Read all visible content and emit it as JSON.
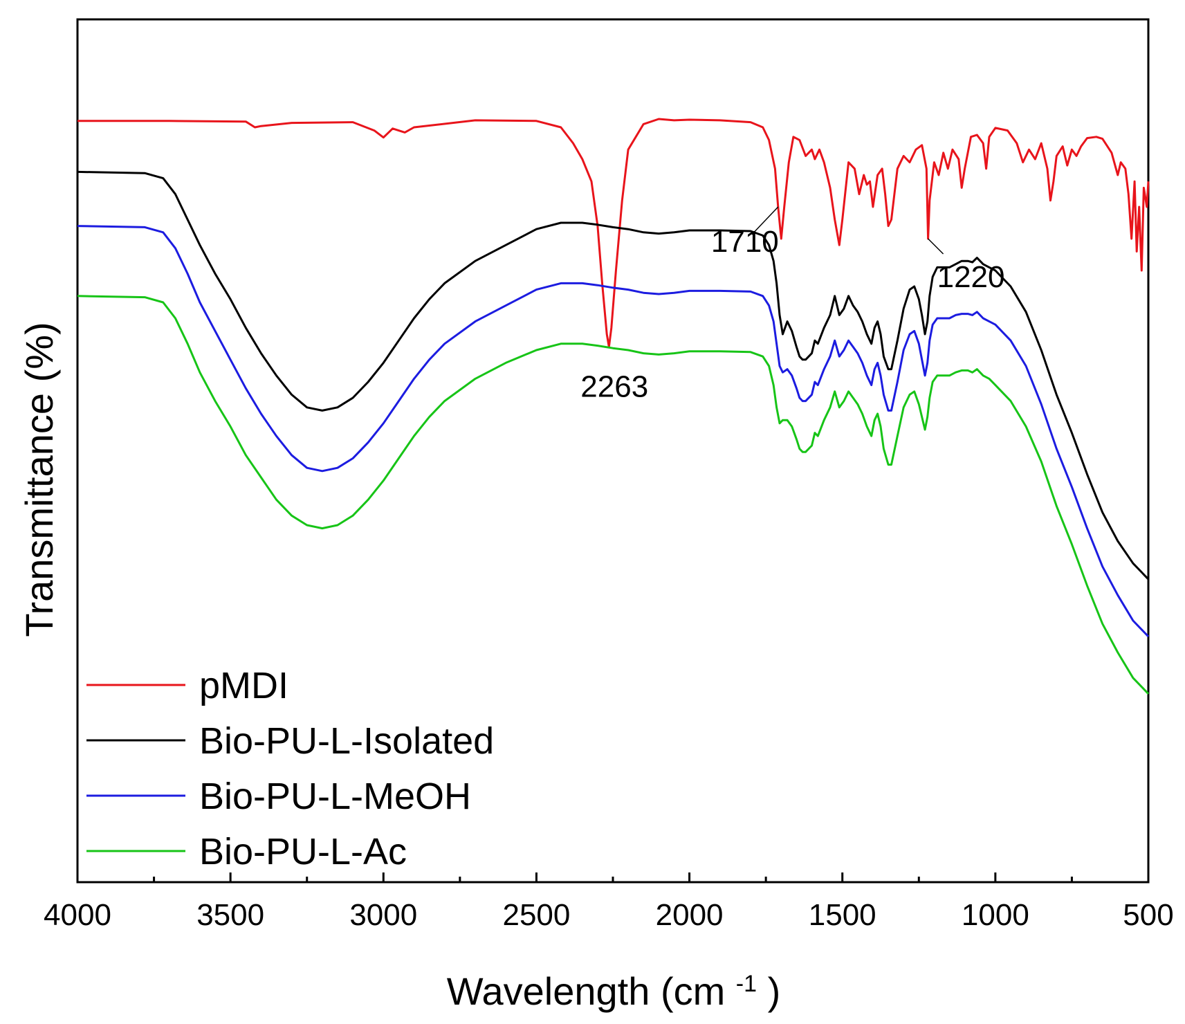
{
  "chart_data": {
    "type": "line",
    "title": "",
    "xlabel": "Wavelength (cm",
    "xlabel_sup": "-1",
    "xlabel_close": ")",
    "ylabel": "Transmittance (%)",
    "xlim": [
      4000,
      500
    ],
    "ylim": [
      0,
      100
    ],
    "x_ticks": [
      4000,
      3500,
      3000,
      2500,
      2000,
      1500,
      1000,
      500
    ],
    "x_tick_labels": [
      "4000",
      "3500",
      "3000",
      "2500",
      "2000",
      "1500",
      "1000",
      "500"
    ],
    "legend_position": "bottom-left",
    "series": [
      {
        "name": "pMDI",
        "color": "#e8141b",
        "x": [
          4000,
          3700,
          3450,
          3420,
          3400,
          3300,
          3100,
          3030,
          3000,
          2970,
          2930,
          2900,
          2700,
          2500,
          2420,
          2380,
          2350,
          2320,
          2300,
          2285,
          2270,
          2263,
          2255,
          2240,
          2220,
          2200,
          2150,
          2100,
          2050,
          2000,
          1900,
          1800,
          1760,
          1740,
          1720,
          1710,
          1700,
          1690,
          1675,
          1660,
          1640,
          1620,
          1600,
          1590,
          1575,
          1560,
          1540,
          1525,
          1510,
          1500,
          1480,
          1460,
          1445,
          1430,
          1420,
          1410,
          1400,
          1385,
          1370,
          1360,
          1350,
          1340,
          1320,
          1300,
          1280,
          1260,
          1240,
          1225,
          1220,
          1215,
          1200,
          1185,
          1170,
          1155,
          1140,
          1120,
          1110,
          1100,
          1080,
          1060,
          1040,
          1030,
          1020,
          1000,
          960,
          930,
          910,
          890,
          870,
          850,
          830,
          820,
          810,
          800,
          780,
          765,
          750,
          735,
          720,
          700,
          670,
          650,
          620,
          600,
          590,
          575,
          565,
          555,
          545,
          538,
          530,
          522,
          515,
          505,
          500
        ],
        "y": [
          93.5,
          93.5,
          93.4,
          92.5,
          92.7,
          93.2,
          93.3,
          92,
          90.9,
          92.3,
          91.7,
          92.5,
          93.6,
          93.5,
          92.5,
          90,
          87.5,
          84,
          77,
          68,
          60,
          58,
          61,
          70,
          81,
          89,
          93,
          93.8,
          93.6,
          93.7,
          93.6,
          93.3,
          92.5,
          90.5,
          86,
          80,
          75,
          80,
          87,
          91,
          90.5,
          88,
          89,
          87.5,
          89,
          87,
          83,
          78,
          74,
          78,
          87,
          86,
          82,
          85,
          83.5,
          84,
          80,
          85,
          86,
          82,
          77,
          78,
          86,
          88,
          87,
          89,
          89.7,
          86,
          75,
          81,
          87,
          85,
          88.5,
          86,
          89,
          87.5,
          83,
          86,
          91,
          91.3,
          90,
          86,
          91,
          92.4,
          92,
          90,
          87,
          89,
          87.5,
          90,
          86,
          81,
          84,
          88,
          89.5,
          86.5,
          89,
          88,
          89.5,
          90.8,
          91,
          90.7,
          88.5,
          85,
          87,
          86,
          82,
          75,
          84,
          73,
          80,
          70,
          83,
          80,
          84
        ],
        "y_note": "relative vertical offsets (stacked spectra, arbitrary units)"
      },
      {
        "name": "Bio-PU-L-Isolated",
        "color": "#000000",
        "x": [
          4000,
          3780,
          3720,
          3680,
          3640,
          3600,
          3550,
          3500,
          3450,
          3400,
          3350,
          3300,
          3250,
          3200,
          3150,
          3100,
          3050,
          3000,
          2950,
          2900,
          2850,
          2800,
          2700,
          2600,
          2500,
          2420,
          2350,
          2300,
          2250,
          2200,
          2150,
          2100,
          2050,
          2000,
          1900,
          1800,
          1760,
          1740,
          1725,
          1715,
          1705,
          1695,
          1680,
          1665,
          1650,
          1640,
          1630,
          1620,
          1600,
          1590,
          1580,
          1560,
          1540,
          1525,
          1510,
          1495,
          1480,
          1465,
          1450,
          1435,
          1420,
          1405,
          1395,
          1385,
          1375,
          1365,
          1350,
          1340,
          1320,
          1300,
          1280,
          1265,
          1250,
          1240,
          1230,
          1222,
          1215,
          1205,
          1190,
          1170,
          1150,
          1130,
          1110,
          1090,
          1075,
          1060,
          1040,
          1020,
          1000,
          950,
          900,
          850,
          800,
          750,
          700,
          650,
          600,
          550,
          520,
          500
        ],
        "y": [
          85.5,
          85.3,
          84.5,
          82,
          78,
          74,
          69.5,
          65.5,
          61,
          57,
          53.5,
          50.5,
          48.5,
          48,
          48.5,
          50,
          52.5,
          55.5,
          59,
          62.5,
          65.5,
          68,
          71.5,
          74,
          76.5,
          77.5,
          77.5,
          77.2,
          76.8,
          76.5,
          76,
          75.8,
          76,
          76.3,
          76.3,
          76.2,
          75.5,
          74,
          71.5,
          68,
          63,
          60,
          62,
          60.5,
          58,
          56.5,
          56,
          56,
          57,
          59,
          58.5,
          61,
          63,
          66,
          63,
          64,
          66,
          64.5,
          63.5,
          62,
          60,
          58.5,
          61,
          62,
          60,
          56.5,
          54.5,
          54.5,
          59,
          64,
          67,
          67.5,
          65.5,
          63,
          60,
          62,
          66,
          69,
          70.5,
          70.5,
          70.5,
          71,
          71.5,
          71.5,
          71.3,
          72,
          71,
          70.5,
          70,
          67.5,
          63.5,
          57.5,
          50.5,
          44.5,
          38,
          32,
          27.5,
          24,
          22.5,
          21.5
        ],
        "y_note": "relative vertical offsets (stacked spectra, arbitrary units)"
      },
      {
        "name": "Bio-PU-L-MeOH",
        "color": "#1c1ce0",
        "x": [
          4000,
          3780,
          3720,
          3680,
          3640,
          3600,
          3550,
          3500,
          3450,
          3400,
          3350,
          3300,
          3250,
          3200,
          3150,
          3100,
          3050,
          3000,
          2950,
          2900,
          2850,
          2800,
          2700,
          2600,
          2500,
          2420,
          2350,
          2300,
          2250,
          2200,
          2150,
          2100,
          2050,
          2000,
          1900,
          1800,
          1760,
          1740,
          1725,
          1715,
          1705,
          1695,
          1680,
          1665,
          1650,
          1640,
          1630,
          1620,
          1600,
          1590,
          1580,
          1560,
          1540,
          1525,
          1510,
          1495,
          1480,
          1465,
          1450,
          1435,
          1420,
          1405,
          1395,
          1385,
          1375,
          1365,
          1350,
          1340,
          1320,
          1300,
          1280,
          1265,
          1250,
          1240,
          1230,
          1222,
          1215,
          1205,
          1190,
          1170,
          1150,
          1130,
          1110,
          1090,
          1075,
          1060,
          1040,
          1020,
          1000,
          950,
          900,
          850,
          800,
          750,
          700,
          650,
          600,
          550,
          520,
          500
        ],
        "y": [
          77,
          76.8,
          76,
          73.5,
          69.5,
          65,
          60.5,
          56,
          51.5,
          47.5,
          44,
          41,
          39,
          38.5,
          39,
          40.5,
          43,
          46,
          49.5,
          53,
          56,
          58.5,
          62,
          64.5,
          67,
          68,
          68,
          67.7,
          67.3,
          67,
          66.5,
          66.3,
          66.5,
          66.8,
          66.8,
          66.7,
          66,
          64.5,
          62,
          58.5,
          55,
          54,
          54.5,
          53.5,
          51.5,
          50,
          49.5,
          49.5,
          50.5,
          52.5,
          52,
          54.5,
          56.5,
          59,
          56.5,
          57.5,
          59,
          58,
          57,
          55.5,
          53.5,
          52,
          54.5,
          55.5,
          53.5,
          50.5,
          48,
          48,
          52.5,
          57.5,
          60,
          60.5,
          58.5,
          56,
          53.5,
          55.5,
          59,
          61.5,
          62.5,
          62.5,
          62.5,
          63,
          63.2,
          63.2,
          63,
          63.5,
          62.5,
          62,
          61.5,
          59,
          55,
          49,
          42,
          36,
          29.5,
          23.5,
          19,
          15,
          13.5,
          12.5
        ],
        "y_note": "relative vertical offsets (stacked spectra, arbitrary units)"
      },
      {
        "name": "Bio-PU-L-Ac",
        "color": "#17c417",
        "x": [
          4000,
          3780,
          3720,
          3680,
          3640,
          3600,
          3550,
          3500,
          3450,
          3400,
          3350,
          3300,
          3250,
          3200,
          3150,
          3100,
          3050,
          3000,
          2950,
          2900,
          2850,
          2800,
          2700,
          2600,
          2500,
          2420,
          2350,
          2300,
          2250,
          2200,
          2150,
          2100,
          2050,
          2000,
          1900,
          1800,
          1760,
          1740,
          1725,
          1715,
          1705,
          1695,
          1680,
          1665,
          1650,
          1640,
          1630,
          1620,
          1600,
          1590,
          1580,
          1560,
          1540,
          1525,
          1510,
          1495,
          1480,
          1465,
          1450,
          1435,
          1420,
          1405,
          1395,
          1385,
          1375,
          1365,
          1350,
          1340,
          1320,
          1300,
          1280,
          1265,
          1250,
          1240,
          1230,
          1222,
          1215,
          1205,
          1190,
          1170,
          1150,
          1130,
          1110,
          1090,
          1075,
          1060,
          1040,
          1020,
          1000,
          950,
          900,
          850,
          800,
          750,
          700,
          650,
          600,
          550,
          520,
          500
        ],
        "y": [
          66,
          65.8,
          65,
          62.5,
          58.5,
          54,
          49.5,
          45.5,
          41,
          37.5,
          34,
          31.5,
          30,
          29.5,
          30,
          31.5,
          34,
          37,
          40.5,
          44,
          47,
          49.5,
          53,
          55.5,
          57.5,
          58.5,
          58.5,
          58.2,
          57.8,
          57.5,
          57,
          56.8,
          57,
          57.3,
          57.3,
          57.2,
          56.5,
          55,
          52,
          48.5,
          46,
          46.5,
          46.5,
          45.5,
          43.5,
          42,
          41.5,
          41.5,
          42.5,
          44.5,
          44,
          46.5,
          48.5,
          51,
          48.5,
          49.5,
          51,
          50,
          49,
          47.5,
          45.5,
          44,
          46.5,
          47.5,
          45.5,
          42,
          39.5,
          39.5,
          44,
          48.5,
          50.5,
          51,
          49,
          47,
          45,
          47,
          50,
          52.5,
          53.5,
          53.5,
          53.5,
          54,
          54.3,
          54.3,
          54,
          54.5,
          53.5,
          53,
          52,
          49.5,
          45.5,
          40,
          33,
          27,
          20.5,
          14.5,
          10,
          6,
          4.5,
          3.5
        ],
        "y_note": "relative vertical offsets (stacked spectra, arbitrary units)"
      }
    ],
    "annotations": [
      {
        "text": "2263",
        "x": 2263,
        "series": "pMDI",
        "y": 58
      },
      {
        "text": "1710",
        "x": 1710,
        "series": "pMDI",
        "y": 80
      },
      {
        "text": "1220",
        "x": 1220,
        "series": "pMDI",
        "y": 75
      }
    ]
  }
}
